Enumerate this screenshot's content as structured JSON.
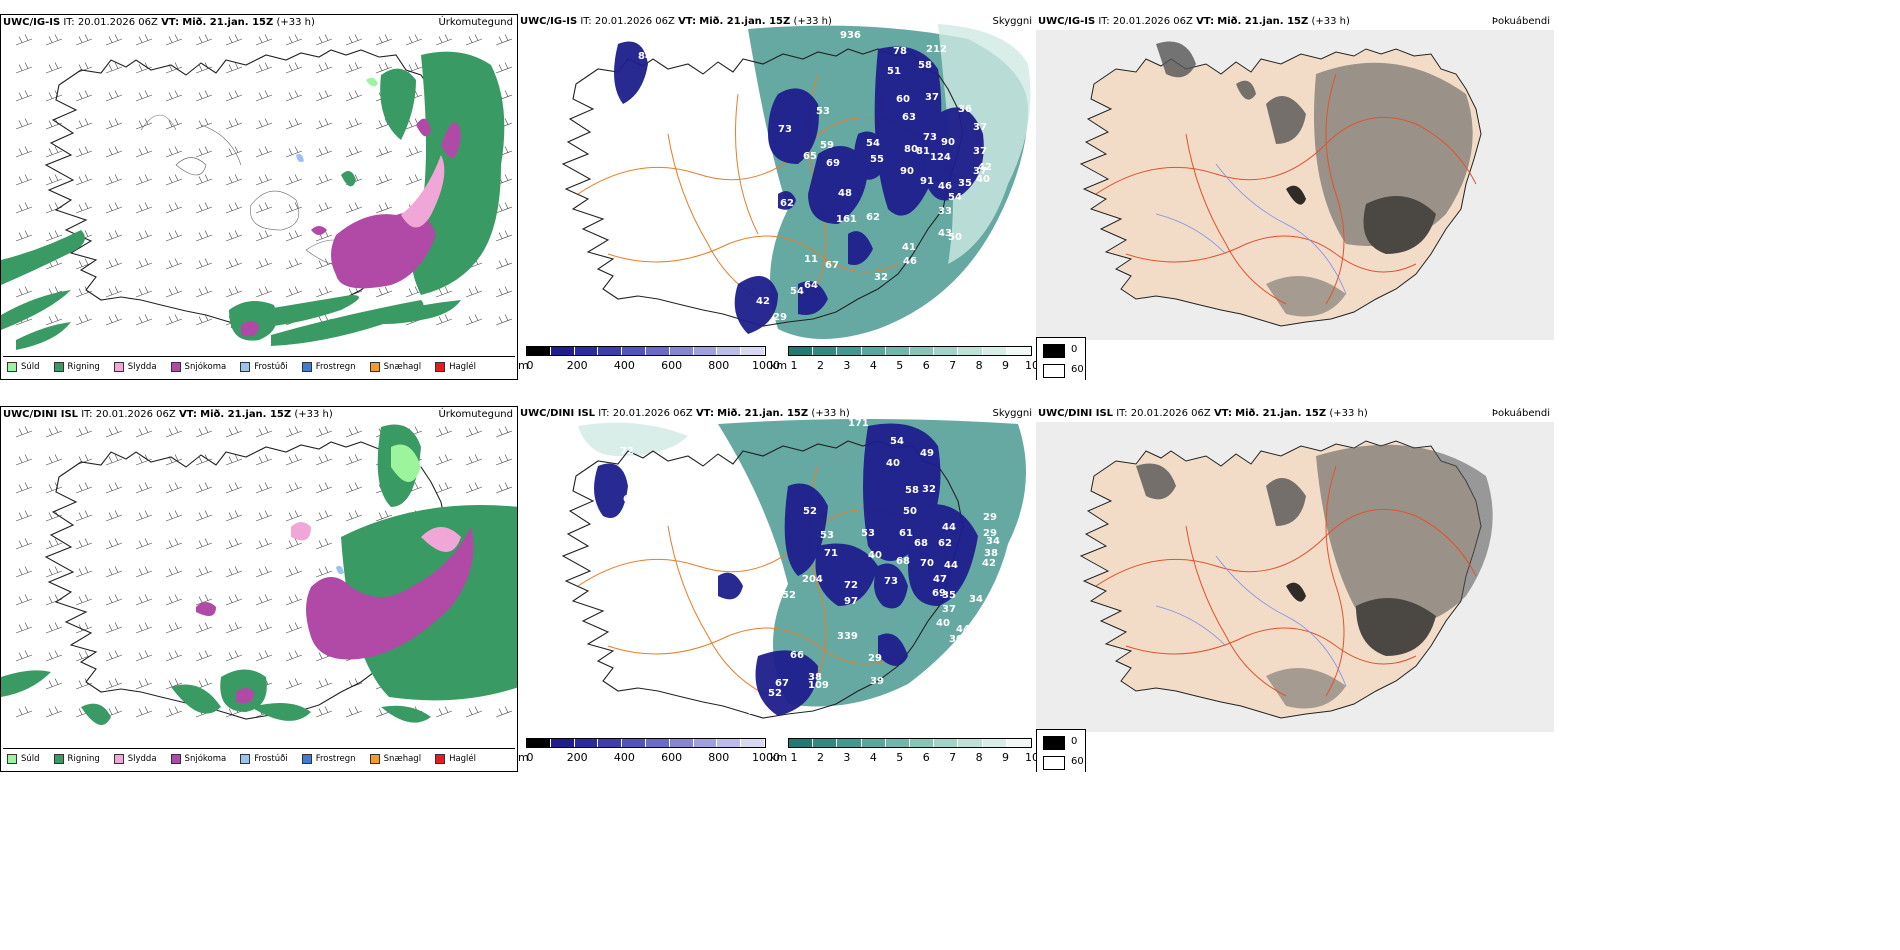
{
  "rows": [
    {
      "model": "UWC/IG-IS",
      "it_label": "IT:",
      "init_time": "20.01.2026 06Z",
      "vt_label": "VT:",
      "valid_time": "Mið. 21.jan. 15Z",
      "lead": "(+33 h)",
      "precip_title": "Úrkomutegund",
      "vis_title": "Skyggni",
      "dew_title": "Þokuábendi",
      "cloud_labels": [
        "936",
        "84",
        "60",
        "67",
        "78",
        "212",
        "58",
        "51",
        "60",
        "37",
        "36",
        "37",
        "63",
        "53",
        "59",
        "69",
        "73",
        "65",
        "54",
        "55",
        "80",
        "81",
        "73",
        "90",
        "124",
        "37",
        "40",
        "37",
        "42",
        "90",
        "91",
        "46",
        "35",
        "54",
        "48",
        "62",
        "161",
        "62",
        "33",
        "43",
        "50",
        "11",
        "41",
        "46",
        "67",
        "32",
        "54",
        "64",
        "42",
        "29"
      ]
    },
    {
      "model": "UWC/DINI ISL",
      "it_label": "IT:",
      "init_time": "20.01.2026 06Z",
      "vt_label": "VT:",
      "valid_time": "Mið. 21.jan. 15Z",
      "lead": "(+33 h)",
      "precip_title": "Úrkomutegund",
      "vis_title": "Skyggni",
      "dew_title": "Þokuábendi",
      "cloud_labels": [
        "171",
        "54",
        "49",
        "40",
        "58",
        "32",
        "72",
        "57",
        "73",
        "69",
        "52",
        "53",
        "71",
        "50",
        "29",
        "44",
        "61",
        "68",
        "62",
        "29",
        "34",
        "38",
        "53",
        "40",
        "68",
        "70",
        "44",
        "42",
        "204",
        "72",
        "97",
        "73",
        "47",
        "69",
        "35",
        "34",
        "37",
        "40",
        "52",
        "339",
        "44",
        "30",
        "29",
        "39",
        "38",
        "109",
        "67",
        "52",
        "23",
        "66"
      ]
    }
  ],
  "precip_legend": [
    {
      "label": "Súld",
      "color": "#9cf59c"
    },
    {
      "label": "Rigning",
      "color": "#3a9a63"
    },
    {
      "label": "Slydda",
      "color": "#f0a6d6"
    },
    {
      "label": "Snjókoma",
      "color": "#b04aa6"
    },
    {
      "label": "Frostúði",
      "color": "#9cc3f0"
    },
    {
      "label": "Frostregn",
      "color": "#3c7fd1"
    },
    {
      "label": "Snæhagl",
      "color": "#f29a2e"
    },
    {
      "label": "Haglél",
      "color": "#e81c1c"
    }
  ],
  "elev_bar": {
    "unit": "m",
    "ticks": [
      "0",
      "200",
      "400",
      "600",
      "800",
      "1000"
    ],
    "colors": [
      "#000000",
      "#1e1e8c",
      "#2b2ba0",
      "#3d3db0",
      "#5252be",
      "#6a6ac8",
      "#8585d2",
      "#a0a0dd",
      "#bcbce8",
      "#d8d8f2"
    ]
  },
  "cloud_bar": {
    "unit": "km",
    "ticks": [
      "1",
      "2",
      "3",
      "4",
      "5",
      "6",
      "7",
      "8",
      "9",
      "10"
    ],
    "colors": [
      "#1f7a73",
      "#2f8a82",
      "#42998f",
      "#58a89d",
      "#6fb7ab",
      "#88c5b9",
      "#a2d3c8",
      "#bce1d7",
      "#d6eee8",
      "#f0f9f6"
    ]
  },
  "dew_legend": {
    "values": [
      "0",
      "60"
    ]
  }
}
